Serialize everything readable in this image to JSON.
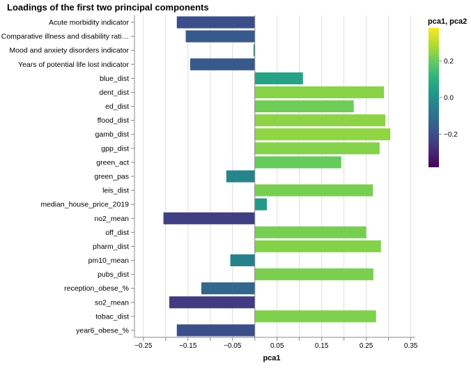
{
  "chart_data": {
    "type": "bar",
    "orientation": "horizontal",
    "title": "Loadings of the first two principal components",
    "xlabel": "pca1",
    "ylabel": "",
    "legend_title": "pca1, pca2",
    "legend_position": "right",
    "legend_ticks": [
      "0.2",
      "0.0",
      "−0.2"
    ],
    "color_scale": "viridis",
    "xlim": [
      -0.27,
      0.36
    ],
    "grid": true,
    "x_ticks": [
      "−0.25",
      "−0.15",
      "−0.05",
      "0.05",
      "0.15",
      "0.25",
      "0.35"
    ],
    "categories": [
      "Acute morbidity indicator",
      "Comparative illness and disability rati…",
      "Mood and anxiety disorders indicator",
      "Years of potential life lost indicator",
      "blue_dist",
      "dent_dist",
      "ed_dist",
      "ffood_dist",
      "gamb_dist",
      "gpp_dist",
      "green_act",
      "green_pas",
      "leis_dist",
      "median_house_price_2019",
      "no2_mean",
      "off_dist",
      "pharm_dist",
      "pm10_mean",
      "pubs_dist",
      "reception_obese_%",
      "so2_mean",
      "tobac_dist",
      "year6_obese_%"
    ],
    "values": [
      -0.175,
      -0.155,
      -0.003,
      -0.145,
      0.108,
      0.29,
      0.222,
      0.293,
      0.304,
      0.28,
      0.194,
      -0.064,
      0.265,
      0.027,
      -0.205,
      0.25,
      0.283,
      -0.055,
      0.266,
      -0.12,
      -0.192,
      0.272,
      -0.175
    ],
    "color_values": [
      -0.2,
      -0.17,
      0.01,
      -0.17,
      0.06,
      0.24,
      0.21,
      0.245,
      0.25,
      0.235,
      0.2,
      -0.04,
      0.22,
      0.03,
      -0.24,
      0.22,
      0.235,
      -0.05,
      0.225,
      -0.13,
      -0.25,
      0.23,
      -0.2
    ]
  }
}
